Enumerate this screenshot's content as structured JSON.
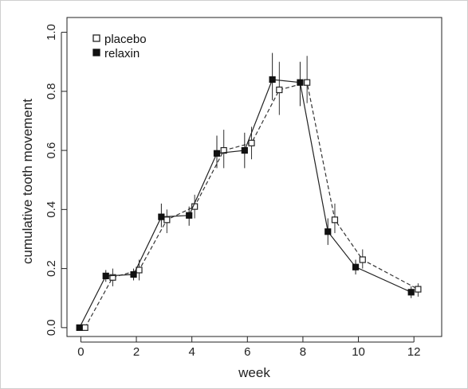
{
  "chart_data": {
    "type": "line",
    "title": "",
    "xlabel": "week",
    "ylabel": "cumulative tooth movement",
    "xlim": [
      -0.5,
      13
    ],
    "ylim": [
      -0.03,
      1.05
    ],
    "xticks": [
      0,
      2,
      4,
      6,
      8,
      10,
      12
    ],
    "yticks": [
      0.0,
      0.2,
      0.4,
      0.6,
      0.8,
      1.0
    ],
    "xtick_labels": [
      "0",
      "2",
      "4",
      "6",
      "8",
      "10",
      "12"
    ],
    "ytick_labels": [
      "0.0",
      "0.2",
      "0.4",
      "0.6",
      "0.8",
      "1.0"
    ],
    "grid": false,
    "legend_position": "top-left",
    "series": [
      {
        "name": "placebo",
        "marker": "open-square",
        "line": "dashed",
        "color": "#333333",
        "points": [
          {
            "x": 0.15,
            "y": 0.0,
            "lo": 0.0,
            "hi": 0.0
          },
          {
            "x": 1.15,
            "y": 0.17,
            "lo": 0.14,
            "hi": 0.2
          },
          {
            "x": 2.1,
            "y": 0.195,
            "lo": 0.16,
            "hi": 0.23
          },
          {
            "x": 3.1,
            "y": 0.365,
            "lo": 0.32,
            "hi": 0.4
          },
          {
            "x": 4.1,
            "y": 0.41,
            "lo": 0.37,
            "hi": 0.45
          },
          {
            "x": 5.15,
            "y": 0.6,
            "lo": 0.54,
            "hi": 0.67
          },
          {
            "x": 6.15,
            "y": 0.625,
            "lo": 0.57,
            "hi": 0.68
          },
          {
            "x": 7.15,
            "y": 0.805,
            "lo": 0.72,
            "hi": 0.9
          },
          {
            "x": 8.15,
            "y": 0.83,
            "lo": 0.76,
            "hi": 0.92
          },
          {
            "x": 9.15,
            "y": 0.365,
            "lo": 0.32,
            "hi": 0.42
          },
          {
            "x": 10.15,
            "y": 0.23,
            "lo": 0.2,
            "hi": 0.265
          },
          {
            "x": 12.15,
            "y": 0.13,
            "lo": 0.105,
            "hi": 0.15
          }
        ]
      },
      {
        "name": "relaxin",
        "marker": "filled-square",
        "line": "solid",
        "color": "#222222",
        "points": [
          {
            "x": -0.05,
            "y": 0.0,
            "lo": 0.0,
            "hi": 0.0
          },
          {
            "x": 0.9,
            "y": 0.175,
            "lo": 0.155,
            "hi": 0.195
          },
          {
            "x": 1.9,
            "y": 0.18,
            "lo": 0.16,
            "hi": 0.2
          },
          {
            "x": 2.9,
            "y": 0.375,
            "lo": 0.34,
            "hi": 0.42
          },
          {
            "x": 3.9,
            "y": 0.38,
            "lo": 0.345,
            "hi": 0.41
          },
          {
            "x": 4.9,
            "y": 0.59,
            "lo": 0.54,
            "hi": 0.65
          },
          {
            "x": 5.9,
            "y": 0.6,
            "lo": 0.54,
            "hi": 0.66
          },
          {
            "x": 6.9,
            "y": 0.84,
            "lo": 0.77,
            "hi": 0.93
          },
          {
            "x": 7.9,
            "y": 0.83,
            "lo": 0.75,
            "hi": 0.9
          },
          {
            "x": 8.9,
            "y": 0.325,
            "lo": 0.28,
            "hi": 0.37
          },
          {
            "x": 9.9,
            "y": 0.205,
            "lo": 0.18,
            "hi": 0.23
          },
          {
            "x": 11.9,
            "y": 0.12,
            "lo": 0.1,
            "hi": 0.14
          }
        ]
      }
    ]
  }
}
